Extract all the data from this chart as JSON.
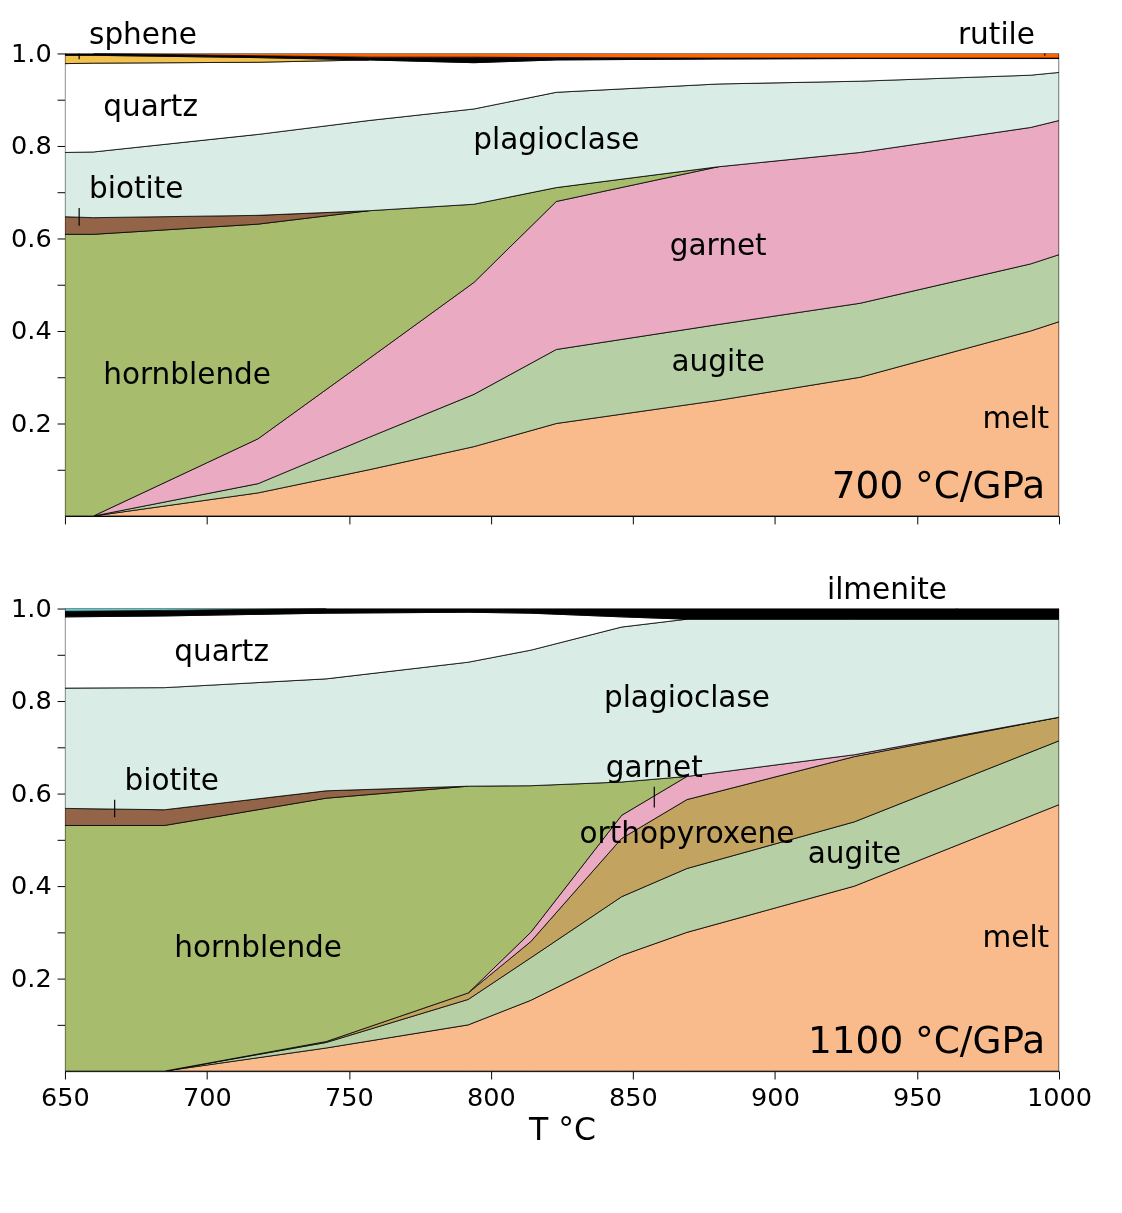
{
  "chart_data": [
    {
      "type": "area",
      "title": "700 °C/GPa",
      "stacked": true,
      "tick_labels": "y",
      "x": [
        650,
        660,
        718,
        757,
        794,
        823,
        880,
        930,
        990,
        1000
      ],
      "xlim": [
        650,
        1000
      ],
      "ylim": [
        0,
        1
      ],
      "xticks": [
        650,
        700,
        750,
        800,
        850,
        900,
        950,
        1000
      ],
      "yticks": [
        {
          "value": 0.1,
          "label": null
        },
        0.2,
        {
          "value": 0.3,
          "label": null
        },
        0.4,
        {
          "value": 0.5,
          "label": null
        },
        0.6,
        {
          "value": 0.7,
          "label": null
        },
        0.8,
        {
          "value": 0.9,
          "label": null
        },
        {
          "value": 1,
          "label": "1.0"
        }
      ],
      "series": [
        {
          "name": "melt",
          "color": "#f9bb8b",
          "values": [
            null,
            0,
            0.05,
            0.1,
            0.15,
            0.2,
            0.25,
            0.3,
            0.4,
            0.42
          ]
        },
        {
          "name": "augite",
          "color": "#b7cfa4",
          "values": [
            null,
            0,
            0.02,
            0.07,
            0.113,
            0.16,
            0.164,
            0.16,
            0.145,
            0.145
          ]
        },
        {
          "name": "garnet",
          "color": "#e9aac2",
          "values": [
            null,
            0,
            0.097,
            0.17,
            0.242,
            0.32,
            0.341,
            0.326,
            0.295,
            0.29
          ]
        },
        {
          "name": "hornblende",
          "color": "#a8bc6e",
          "values": [
            0.609,
            0.609,
            0.464,
            0.32,
            0.169,
            0.03,
            0,
            null,
            null,
            null
          ]
        },
        {
          "name": "biotite",
          "color": "#936447",
          "values": [
            0.038,
            0.036,
            0.019,
            0,
            null,
            null,
            null,
            null,
            null,
            null
          ]
        },
        {
          "name": "plagioclase",
          "color": "#d9ede6",
          "values": [
            0.139,
            0.142,
            0.175,
            0.195,
            0.206,
            0.206,
            0.179,
            0.154,
            0.113,
            0.104
          ]
        },
        {
          "name": "quartz",
          "color": "#ffffff",
          "values": [
            0.192,
            0.192,
            0.156,
            0.131,
            0.1,
            0.07,
            0.054,
            0.049,
            0.036,
            0.03
          ]
        },
        {
          "name": "sphene",
          "color": "#f2c14e",
          "values": [
            0.018,
            0.017,
            0.01,
            0,
            null,
            null,
            null,
            null,
            null,
            null
          ]
        },
        {
          "color": "#000000",
          "values": [
            0.004,
            0.004,
            0.004,
            0.006,
            0.012,
            0.005,
            0.002,
            0.001,
            0.001,
            0.001
          ]
        },
        {
          "name": "rutile",
          "color": "#ff6600",
          "values": [
            null,
            0,
            0.005,
            0.008,
            0.008,
            0.009,
            0.01,
            0.01,
            0.01,
            0.01
          ]
        }
      ]
    },
    {
      "type": "area",
      "title": "1100 °C/GPa",
      "stacked": true,
      "xlabel": "T °C",
      "x": [
        650,
        685,
        742,
        792,
        814,
        846,
        869,
        928,
        1000
      ],
      "xlim": [
        650,
        1000
      ],
      "ylim": [
        0,
        1
      ],
      "xticks": [
        650,
        700,
        750,
        800,
        850,
        900,
        950,
        1000
      ],
      "yticks": [
        {
          "value": 0.1,
          "label": null
        },
        0.2,
        {
          "value": 0.3,
          "label": null
        },
        0.4,
        {
          "value": 0.5,
          "label": null
        },
        0.6,
        {
          "value": 0.7,
          "label": null
        },
        0.8,
        {
          "value": 0.9,
          "label": null
        },
        {
          "value": 1,
          "label": "1.0"
        }
      ],
      "series": [
        {
          "name": "melt",
          "color": "#f9bb8b",
          "values": [
            null,
            0,
            0.05,
            0.1,
            0.153,
            0.25,
            0.3,
            0.4,
            0.576
          ]
        },
        {
          "name": "augite",
          "color": "#b7cfa4",
          "values": [
            null,
            0,
            0.012,
            0.055,
            0.092,
            0.127,
            0.138,
            0.139,
            0.138
          ]
        },
        {
          "name": "orthopyroxene",
          "color": "#c2a35f",
          "values": [
            null,
            0,
            0.002,
            0.014,
            0.035,
            0.126,
            0.149,
            0.141,
            0.051
          ]
        },
        {
          "name": "garnet",
          "color": "#e9aac2",
          "values": [
            null,
            null,
            null,
            0,
            0.02,
            0.05,
            0.05,
            0.004,
            0
          ]
        },
        {
          "name": "hornblende",
          "color": "#a8bc6e",
          "values": [
            0.531,
            0.531,
            0.526,
            0.447,
            0.317,
            0.072,
            0,
            null,
            null
          ]
        },
        {
          "name": "biotite",
          "color": "#936447",
          "values": [
            0.037,
            0.034,
            0.016,
            0,
            null,
            null,
            null,
            null,
            null
          ]
        },
        {
          "name": "plagioclase",
          "color": "#d9ede6",
          "values": [
            0.26,
            0.264,
            0.242,
            0.268,
            0.293,
            0.335,
            0.34,
            0.293,
            0.212
          ]
        },
        {
          "name": "quartz",
          "color": "#ffffff",
          "values": [
            0.154,
            0.155,
            0.142,
            0.108,
            0.08,
            0.022,
            0,
            null,
            null
          ]
        },
        {
          "name": "ilmenite",
          "color": "#000000",
          "values": [
            0.012,
            0.012,
            0.01,
            0.008,
            0.01,
            0.018,
            0.023,
            0.023,
            0.023
          ]
        },
        {
          "color": "#5fd3d3",
          "values": [
            0.006,
            0.004,
            0,
            null,
            null,
            null,
            null,
            null,
            null
          ]
        }
      ]
    }
  ]
}
